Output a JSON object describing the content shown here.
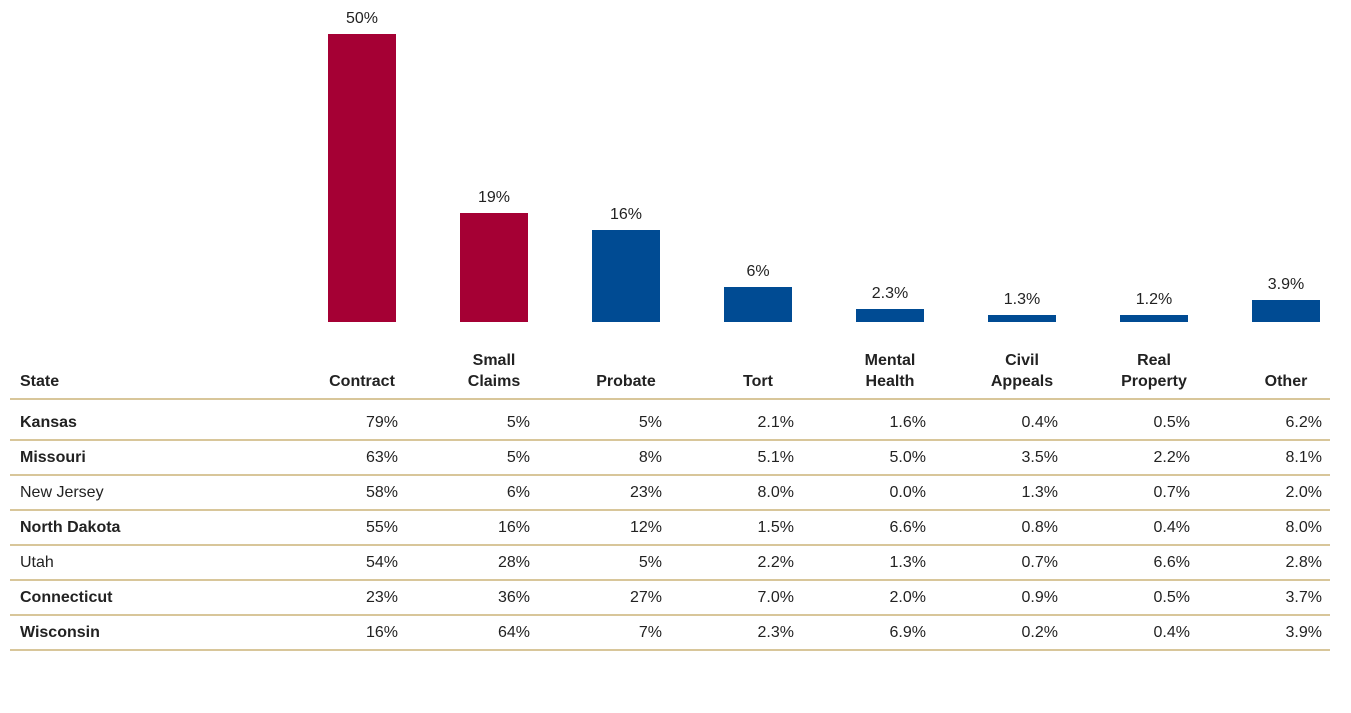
{
  "chart_data": {
    "type": "bar",
    "categories": [
      "Contract",
      "Small Claims",
      "Probate",
      "Tort",
      "Mental Health",
      "Civil Appeals",
      "Real Property",
      "Other"
    ],
    "values": [
      50,
      19,
      16,
      6,
      2.3,
      1.3,
      1.2,
      3.9
    ],
    "value_labels": [
      "50%",
      "19%",
      "16%",
      "6%",
      "2.3%",
      "1.3%",
      "1.2%",
      "3.9%"
    ],
    "colors": [
      "#a50034",
      "#a50034",
      "#004b93",
      "#004b93",
      "#004b93",
      "#004b93",
      "#004b93",
      "#004b93"
    ]
  },
  "table": {
    "header": "State",
    "rows": [
      {
        "state": "Kansas",
        "bold": true,
        "cells": [
          "79%",
          "5%",
          "5%",
          "2.1%",
          "1.6%",
          "0.4%",
          "0.5%",
          "6.2%"
        ]
      },
      {
        "state": "Missouri",
        "bold": true,
        "cells": [
          "63%",
          "5%",
          "8%",
          "5.1%",
          "5.0%",
          "3.5%",
          "2.2%",
          "8.1%"
        ]
      },
      {
        "state": "New Jersey",
        "bold": false,
        "cells": [
          "58%",
          "6%",
          "23%",
          "8.0%",
          "0.0%",
          "1.3%",
          "0.7%",
          "2.0%"
        ]
      },
      {
        "state": "North Dakota",
        "bold": true,
        "cells": [
          "55%",
          "16%",
          "12%",
          "1.5%",
          "6.6%",
          "0.8%",
          "0.4%",
          "8.0%"
        ]
      },
      {
        "state": "Utah",
        "bold": false,
        "cells": [
          "54%",
          "28%",
          "5%",
          "2.2%",
          "1.3%",
          "0.7%",
          "6.6%",
          "2.8%"
        ]
      },
      {
        "state": "Connecticut",
        "bold": true,
        "cells": [
          "23%",
          "36%",
          "27%",
          "7.0%",
          "2.0%",
          "0.9%",
          "0.5%",
          "3.7%"
        ]
      },
      {
        "state": "Wisconsin",
        "bold": true,
        "cells": [
          "16%",
          "64%",
          "7%",
          "2.3%",
          "6.9%",
          "0.2%",
          "0.4%",
          "3.9%"
        ]
      }
    ]
  }
}
